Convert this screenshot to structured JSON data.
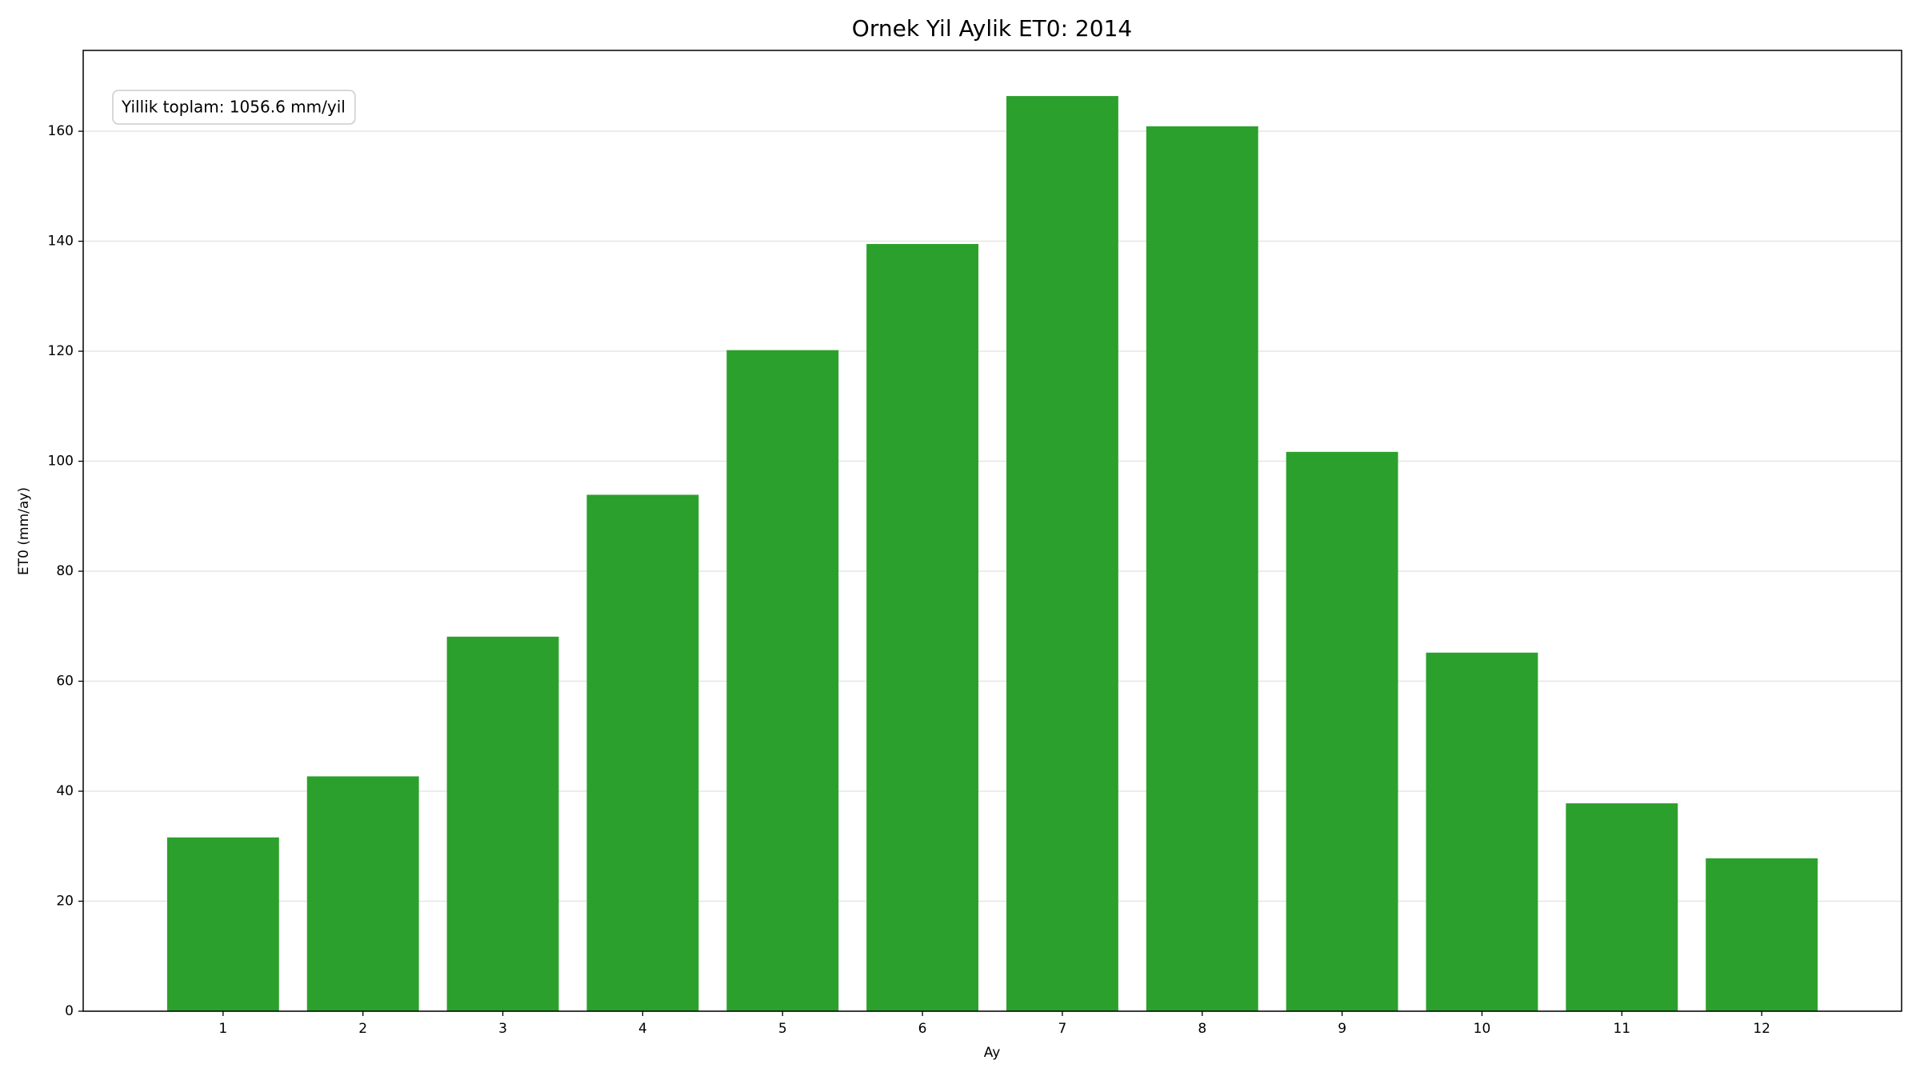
{
  "chart_data": {
    "type": "bar",
    "title": "Ornek Yil Aylik ET0: 2014",
    "x_label": "Ay",
    "y_label": "ET0 (mm/ay)",
    "annotation": "Yillik toplam: 1056.6 mm/yil",
    "x": [
      1,
      2,
      3,
      4,
      5,
      6,
      7,
      8,
      9,
      10,
      11,
      12
    ],
    "values": [
      31.6,
      42.7,
      68.1,
      93.9,
      120.2,
      139.5,
      166.4,
      160.9,
      101.7,
      65.2,
      37.8,
      27.8
    ],
    "color": "#2ca02c",
    "xlim": [
      0,
      13
    ],
    "xticks": [
      1,
      2,
      3,
      4,
      5,
      6,
      7,
      8,
      9,
      10,
      11,
      12
    ],
    "ylim": [
      0,
      174.7
    ],
    "yticks": [
      0,
      20,
      40,
      60,
      80,
      100,
      120,
      140,
      160
    ],
    "grid": true
  }
}
